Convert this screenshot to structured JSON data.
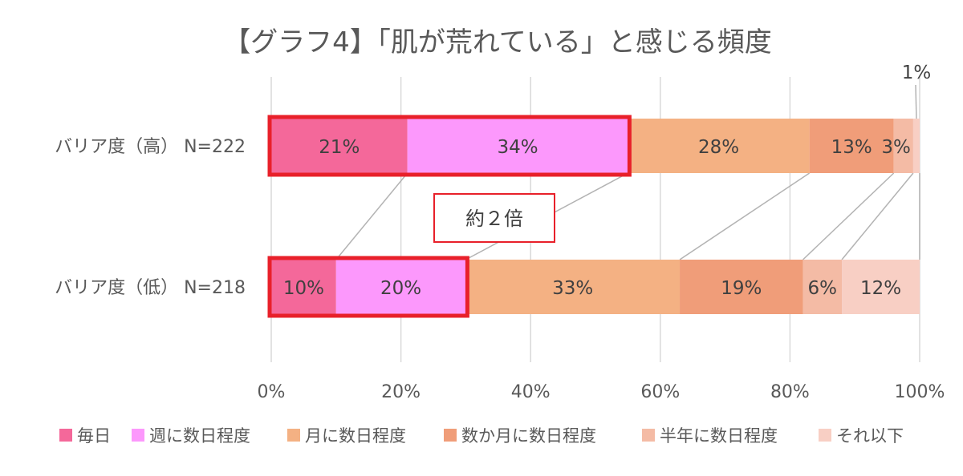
{
  "chart_data": {
    "type": "stacked-bar-horizontal",
    "title": "【グラフ4】「肌が荒れている」と感じる頻度",
    "categories": [
      "バリア度（高） N=222",
      "バリア度（低） N=218"
    ],
    "series": [
      {
        "name": "毎日",
        "values": [
          21,
          10
        ],
        "labels": [
          "21%",
          "10%"
        ],
        "color": "#f4689a"
      },
      {
        "name": "週に数日程度",
        "values": [
          34,
          20
        ],
        "labels": [
          "34%",
          "20%"
        ],
        "color": "#fc98fc"
      },
      {
        "name": "月に数日程度",
        "values": [
          28,
          33
        ],
        "labels": [
          "28%",
          "33%"
        ],
        "color": "#f4b183"
      },
      {
        "name": "数か月に数日程度",
        "values": [
          13,
          19
        ],
        "labels": [
          "13%",
          "19%"
        ],
        "color": "#f09d79"
      },
      {
        "name": "半年に数日程度",
        "values": [
          3,
          6
        ],
        "labels": [
          "",
          "6%"
        ],
        "color": "#f4bba5"
      },
      {
        "name": "それ以下",
        "values": [
          1,
          12
        ],
        "labels": [
          "",
          "12%"
        ],
        "color": "#f8cfc4"
      }
    ],
    "extra_labels": {
      "row0_half_year_label": "3%",
      "row0_below_label": "1%"
    },
    "xlim": [
      0,
      100
    ],
    "xticks": [
      "0%",
      "20%",
      "40%",
      "60%",
      "80%",
      "100%"
    ],
    "grid": true,
    "legend": "bottom",
    "annotation": "約２倍",
    "highlight_color": "#e8202a"
  }
}
